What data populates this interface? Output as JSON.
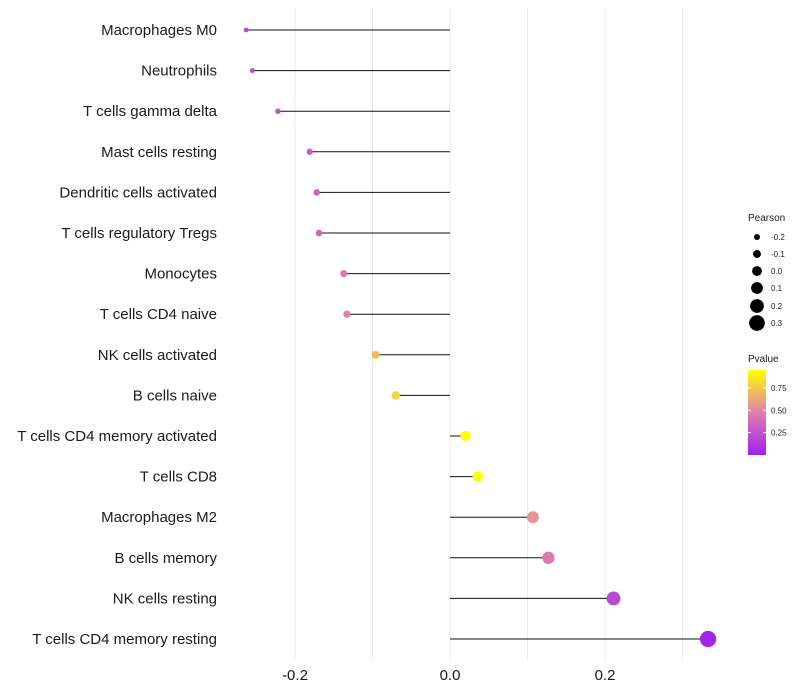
{
  "chart_data": {
    "type": "lollipop",
    "categories": [
      "Macrophages M0",
      "Neutrophils",
      "T cells gamma delta",
      "Mast cells resting",
      "Dendritic cells activated",
      "T cells regulatory  Tregs ",
      "Monocytes",
      "T cells CD4 naive",
      "NK cells activated",
      "B cells naive",
      "T cells CD4 memory activated",
      "T cells CD8",
      "Macrophages M2",
      "B cells memory",
      "NK cells resting",
      "T cells CD4 memory resting"
    ],
    "pearson": [
      -0.263,
      -0.255,
      -0.222,
      -0.181,
      -0.172,
      -0.169,
      -0.137,
      -0.133,
      -0.096,
      -0.07,
      0.02,
      0.036,
      0.107,
      0.127,
      0.211,
      0.333
    ],
    "pvalue": [
      0.18,
      0.2,
      0.24,
      0.3,
      0.32,
      0.34,
      0.45,
      0.48,
      0.7,
      0.8,
      0.97,
      0.95,
      0.55,
      0.44,
      0.2,
      0.02
    ],
    "x_ticks": [
      -0.2,
      0.0,
      0.2
    ],
    "x_tick_labels": [
      "-0.2",
      "0.0",
      "0.2"
    ],
    "xlim": [
      -0.285,
      0.355
    ],
    "legend_size": {
      "title": "Pearson",
      "values": [
        -0.2,
        -0.1,
        0.0,
        0.1,
        0.2,
        0.3
      ],
      "labels": [
        "-0.2",
        "-0.1",
        "0.0",
        "0.1",
        "0.2",
        "0.3"
      ]
    },
    "legend_color": {
      "title": "Pvalue",
      "values": [
        0.75,
        0.5,
        0.25
      ],
      "labels": [
        "0.75",
        "0.50",
        "0.25"
      ],
      "range": [
        0.0,
        0.95
      ]
    },
    "colors": {
      "low": "#a020f0",
      "mid": "#e07fb0",
      "high": "#ffff00"
    }
  }
}
